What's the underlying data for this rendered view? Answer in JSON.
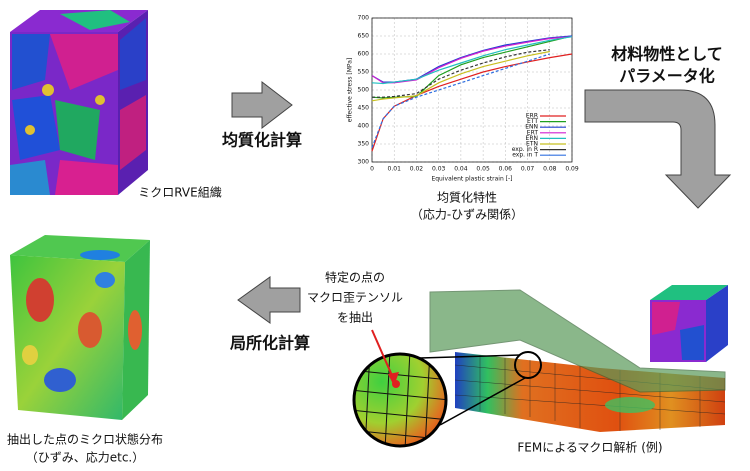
{
  "labels": {
    "rve_caption": "ミクロRVE組織",
    "homogenize": "均質化計算",
    "props_title": "均質化特性",
    "props_sub": "（応力-ひずみ関係）",
    "param_1": "材料物性として",
    "param_2": "パラメータ化",
    "extract_1": "特定の点の",
    "extract_2": "マクロ歪テンソル",
    "extract_3": "を抽出",
    "localize": "局所化計算",
    "result_1": "抽出した点のミクロ状態分布",
    "result_2": "（ひずみ、応力etc.）",
    "fem_caption": "FEMによるマクロ解析 (例)"
  },
  "chart_data": {
    "type": "line",
    "x_label": "Equivalent plastic strain [-]",
    "y_label": "effective stress [MPa]",
    "x": [
      0,
      0.005,
      0.01,
      0.02,
      0.03,
      0.04,
      0.05,
      0.06,
      0.07,
      0.08,
      0.09
    ],
    "series": [
      {
        "name": "ERR",
        "color": "#e02020",
        "values": [
          330,
          420,
          455,
          485,
          510,
          530,
          550,
          565,
          578,
          590,
          600
        ]
      },
      {
        "name": "ETT",
        "color": "#20a020",
        "values": [
          480,
          478,
          480,
          482,
          540,
          570,
          590,
          605,
          620,
          635,
          650
        ]
      },
      {
        "name": "ENN",
        "color": "#2040d0",
        "values": [
          540,
          522,
          522,
          530,
          565,
          590,
          610,
          625,
          635,
          645,
          650
        ]
      },
      {
        "name": "ERT",
        "color": "#d020d0",
        "values": [
          540,
          520,
          520,
          528,
          562,
          588,
          608,
          622,
          633,
          643,
          648
        ]
      },
      {
        "name": "ERN",
        "color": "#20c0c0",
        "values": [
          520,
          518,
          522,
          530,
          555,
          575,
          595,
          612,
          625,
          638,
          648
        ]
      },
      {
        "name": "ETN",
        "color": "#c8c020",
        "values": [
          470,
          475,
          478,
          484,
          520,
          545,
          565,
          580,
          595,
          607,
          null
        ]
      },
      {
        "name": "exp. in R",
        "color": "#333333",
        "values": [
          480,
          480,
          482,
          490,
          530,
          555,
          575,
          592,
          605,
          612,
          null
        ]
      },
      {
        "name": "exp. in T",
        "color": "#3070e0",
        "values": [
          340,
          420,
          455,
          480,
          500,
          520,
          540,
          560,
          580,
          600,
          null
        ]
      }
    ],
    "xlim": [
      0,
      0.09
    ],
    "xticks": [
      0,
      0.01,
      0.02,
      0.03,
      0.04,
      0.05,
      0.06,
      0.07,
      0.08,
      0.09
    ],
    "ylim": [
      300,
      700
    ],
    "yticks": [
      300,
      350,
      400,
      450,
      500,
      550,
      600,
      650,
      700
    ],
    "grid": true
  }
}
